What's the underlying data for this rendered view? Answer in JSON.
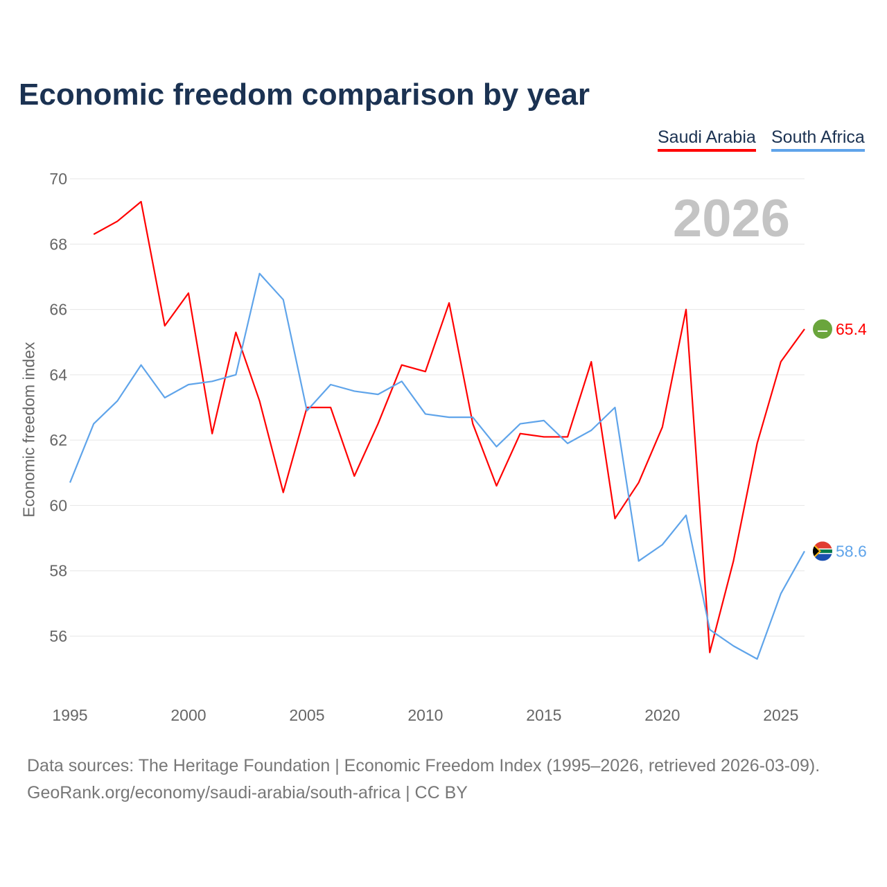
{
  "chart_data": {
    "type": "line",
    "title": "Economic freedom comparison by year",
    "ylabel": "Economic freedom index",
    "xlabel": "",
    "ylim": [
      54,
      70
    ],
    "xlim": [
      1995,
      2026
    ],
    "yticks": [
      56,
      58,
      60,
      62,
      64,
      66,
      68,
      70
    ],
    "xticks": [
      1995,
      2000,
      2005,
      2010,
      2015,
      2020,
      2025
    ],
    "grid": true,
    "legend_placement": "top-right",
    "current_year": "2026",
    "series": [
      {
        "name": "Saudi Arabia",
        "color": "#ff0000",
        "end_label": "65.4",
        "flag": "saudi-arabia-flag-icon",
        "x": [
          1996,
          1997,
          1998,
          1999,
          2000,
          2001,
          2002,
          2003,
          2004,
          2005,
          2006,
          2007,
          2008,
          2009,
          2010,
          2011,
          2012,
          2013,
          2014,
          2015,
          2016,
          2017,
          2018,
          2019,
          2020,
          2021,
          2022,
          2023,
          2024,
          2025,
          2026
        ],
        "values": [
          68.3,
          68.7,
          69.3,
          65.5,
          66.5,
          62.2,
          65.3,
          63.2,
          60.4,
          63.0,
          63.0,
          60.9,
          62.5,
          64.3,
          64.1,
          66.2,
          62.5,
          60.6,
          62.2,
          62.1,
          62.1,
          64.4,
          59.6,
          60.7,
          62.4,
          66.0,
          55.5,
          58.3,
          61.9,
          64.4,
          65.4
        ]
      },
      {
        "name": "South Africa",
        "color": "#5fa4ea",
        "end_label": "58.6",
        "flag": "south-africa-flag-icon",
        "x": [
          1995,
          1996,
          1997,
          1998,
          1999,
          2000,
          2001,
          2002,
          2003,
          2004,
          2005,
          2006,
          2007,
          2008,
          2009,
          2010,
          2011,
          2012,
          2013,
          2014,
          2015,
          2016,
          2017,
          2018,
          2019,
          2020,
          2021,
          2022,
          2023,
          2024,
          2025,
          2026
        ],
        "values": [
          60.7,
          62.5,
          63.2,
          64.3,
          63.3,
          63.7,
          63.8,
          64.0,
          67.1,
          66.3,
          62.9,
          63.7,
          63.5,
          63.4,
          63.8,
          62.8,
          62.7,
          62.7,
          61.8,
          62.5,
          62.6,
          61.9,
          62.3,
          63.0,
          58.3,
          58.8,
          59.7,
          56.2,
          55.7,
          55.3,
          57.3,
          58.6
        ]
      }
    ]
  },
  "footer": {
    "line1": "Data sources: The Heritage Foundation | Economic Freedom Index (1995–2026, retrieved 2026-03-09).",
    "line2": "GeoRank.org/economy/saudi-arabia/south-africa | CC BY"
  }
}
